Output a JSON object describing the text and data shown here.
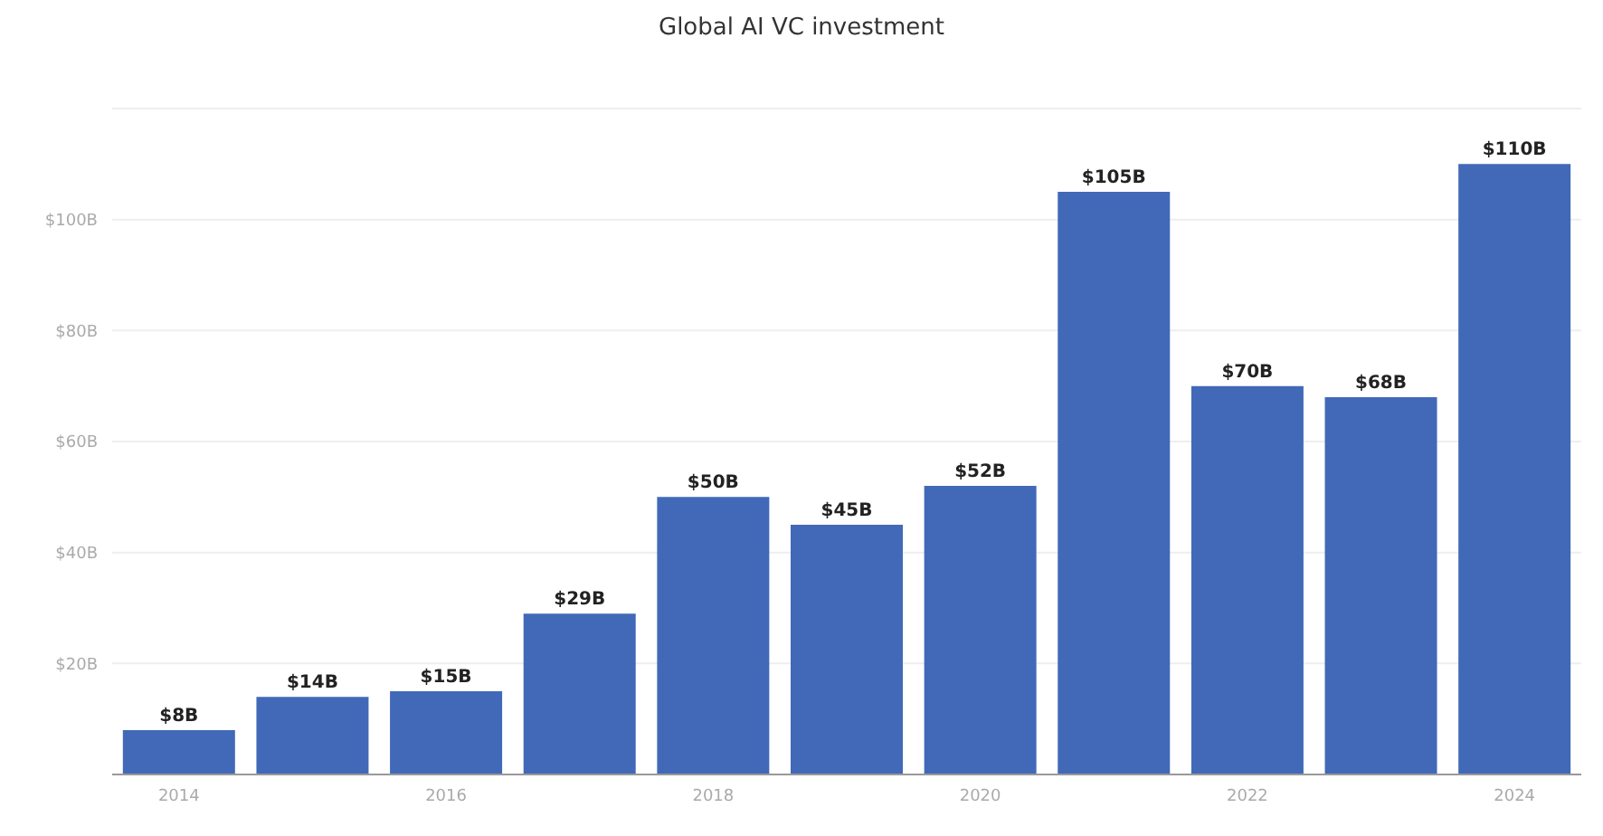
{
  "chart_data": {
    "type": "bar",
    "title": "Global AI VC investment",
    "categories": [
      "2014",
      null,
      "2016",
      null,
      "2018",
      null,
      "2020",
      null,
      "2022",
      null,
      "2024"
    ],
    "values": [
      8,
      14,
      15,
      29,
      50,
      45,
      52,
      105,
      70,
      68,
      110
    ],
    "value_labels": [
      "$8B",
      "$14B",
      "$15B",
      "$29B",
      "$50B",
      "$45B",
      "$52B",
      "$105B",
      "$70B",
      "$68B",
      "$110B"
    ],
    "color": "#4169b8",
    "ylim": [
      0,
      120
    ],
    "yticks": [
      {
        "value": 0,
        "label": null
      },
      {
        "value": 20,
        "label": "$20B"
      },
      {
        "value": 40,
        "label": "$40B"
      },
      {
        "value": 60,
        "label": "$60B"
      },
      {
        "value": 80,
        "label": "$80B"
      },
      {
        "value": 100,
        "label": "$100B"
      }
    ],
    "grid": "y"
  }
}
